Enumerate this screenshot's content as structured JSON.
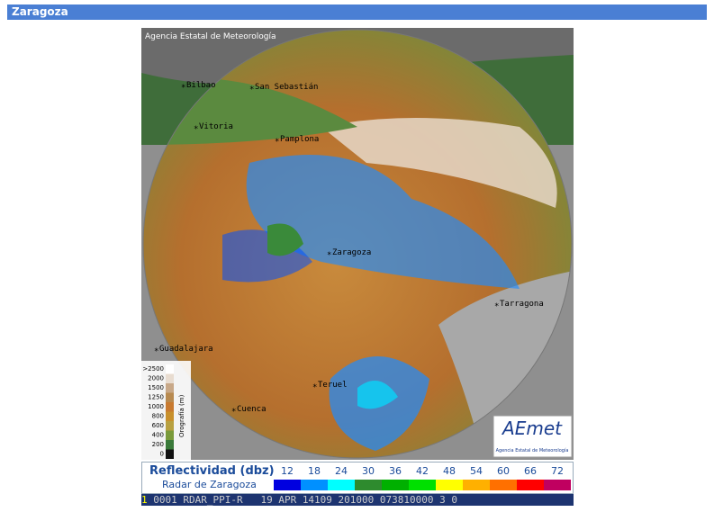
{
  "header": {
    "title": "Zaragoza"
  },
  "map": {
    "copyright": "Agencia Estatal de Meteorología",
    "cities": [
      "Bilbao",
      "San Sebastián",
      "Vitoria",
      "Pamplona",
      "Zaragoza",
      "Tarragona",
      "Guadalajara",
      "Teruel",
      "Cuenca"
    ],
    "orography": {
      "title": "Orografía (m)",
      "labels": [
        ">2500",
        "2000",
        "1500",
        "1250",
        "1000",
        "800",
        "600",
        "400",
        "200",
        "0"
      ]
    },
    "logo": {
      "name": "AEmet",
      "caption": "Agencia Estatal de Meteorología"
    }
  },
  "legend": {
    "title": "Reflectividad (dbz)",
    "subtitle": "Radar de Zaragoza",
    "levels": [
      "12",
      "18",
      "24",
      "30",
      "36",
      "42",
      "48",
      "54",
      "60",
      "66",
      "72"
    ]
  },
  "status": {
    "index": "1",
    "text": "0001 RDAR_PPI-R   19 APR 14109 201000 073810000 3 0"
  }
}
